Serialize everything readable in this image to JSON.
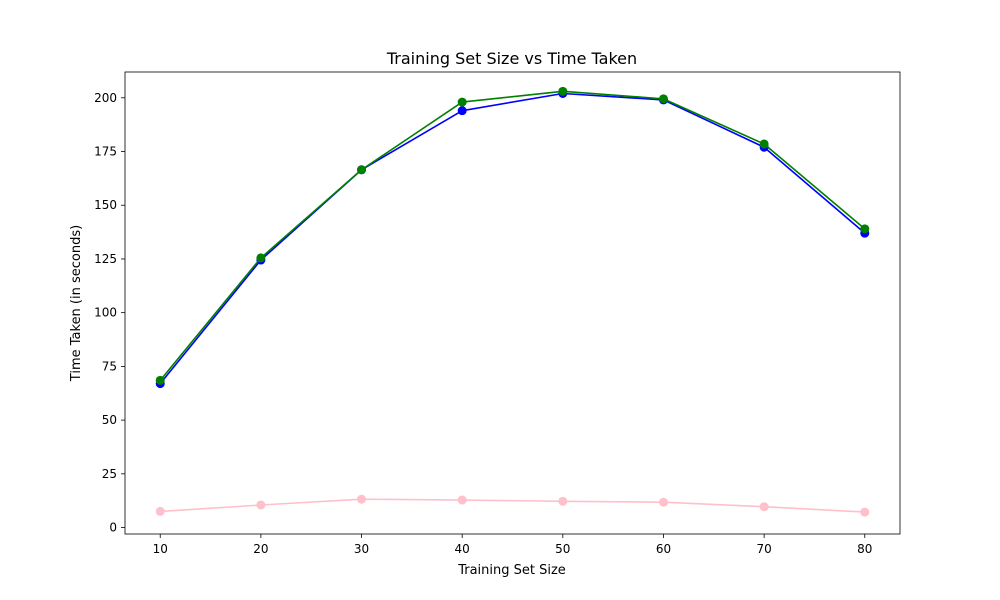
{
  "chart_data": {
    "type": "line",
    "title": "Training Set Size vs Time Taken",
    "xlabel": "Training Set Size",
    "ylabel": "Time Taken (in seconds)",
    "x": [
      10,
      20,
      30,
      40,
      50,
      60,
      70,
      80
    ],
    "xlim": [
      6.5,
      83.5
    ],
    "ylim": [
      -3,
      212
    ],
    "xticks": [
      10,
      20,
      30,
      40,
      50,
      60,
      70,
      80
    ],
    "yticks": [
      0,
      25,
      50,
      75,
      100,
      125,
      150,
      175,
      200
    ],
    "grid": false,
    "legend": "none",
    "series": [
      {
        "color": "#0000ff",
        "marker": "circle",
        "values": [
          67,
          124.5,
          166.5,
          194,
          202,
          199,
          177,
          137
        ]
      },
      {
        "color": "#008000",
        "marker": "circle",
        "values": [
          68.5,
          125.5,
          166.5,
          198,
          203,
          199.5,
          178.5,
          139
        ]
      },
      {
        "color": "#ffc0cb",
        "marker": "circle",
        "values": [
          7.5,
          10.5,
          13.2,
          12.8,
          12.2,
          11.8,
          9.7,
          7.2
        ]
      }
    ]
  }
}
